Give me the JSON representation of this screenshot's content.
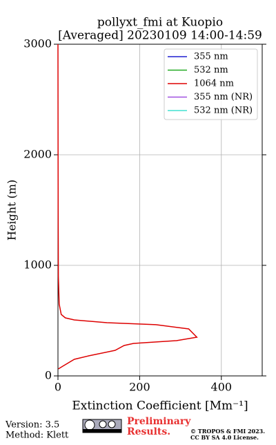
{
  "chart_data": {
    "type": "line",
    "title": [
      "pollyxt_fmi at Kuopio",
      "[Averaged] 20230109 14:00-14:59"
    ],
    "x_label": "Extinction Coefficient [Mm⁻¹]",
    "y_label": "Height (m)",
    "y": [
      63,
      88,
      150,
      181,
      231,
      275,
      294,
      319,
      350,
      425,
      463,
      481,
      506,
      525,
      556,
      650,
      900,
      1500,
      2000,
      3000
    ],
    "series": [
      {
        "name": "355 nm",
        "color": "#1f1fd0",
        "values": [
          null,
          null,
          null,
          null,
          null,
          null,
          null,
          null,
          null,
          null,
          null,
          null,
          null,
          null,
          null,
          null,
          null,
          null,
          null,
          null
        ]
      },
      {
        "name": "532 nm",
        "color": "#22aa22",
        "values": [
          null,
          null,
          null,
          null,
          null,
          null,
          null,
          null,
          null,
          null,
          null,
          null,
          null,
          null,
          null,
          null,
          null,
          null,
          null,
          null
        ]
      },
      {
        "name": "1064 nm",
        "color": "#dd0000",
        "values": [
          1,
          12,
          40,
          75,
          140,
          162,
          185,
          290,
          340,
          320,
          240,
          120,
          40,
          18,
          8,
          3,
          1,
          0.5,
          0.3,
          0
        ]
      },
      {
        "name": "355 nm (NR)",
        "color": "#a050e0",
        "values": [
          null,
          null,
          null,
          null,
          null,
          null,
          null,
          null,
          null,
          null,
          null,
          null,
          null,
          null,
          null,
          null,
          null,
          null,
          null,
          null
        ]
      },
      {
        "name": "532 nm (NR)",
        "color": "#40e0d0",
        "values": [
          null,
          null,
          null,
          null,
          null,
          null,
          null,
          null,
          null,
          null,
          null,
          null,
          null,
          null,
          null,
          null,
          null,
          null,
          null,
          null
        ]
      }
    ],
    "xlim": [
      0,
      500
    ],
    "xticks": [
      0,
      200,
      400
    ],
    "ylim": [
      0,
      3000
    ],
    "yticks": [
      0,
      1000,
      2000,
      3000
    ],
    "grid": true,
    "legend": "upper-right"
  },
  "footer": {
    "version": "Version: 3.5",
    "method": "Method: Klett",
    "notice": [
      "Preliminary",
      "Results."
    ],
    "copyright": [
      "© TROPOS & FMI 2023.",
      "CC BY SA 4.0 License."
    ]
  }
}
